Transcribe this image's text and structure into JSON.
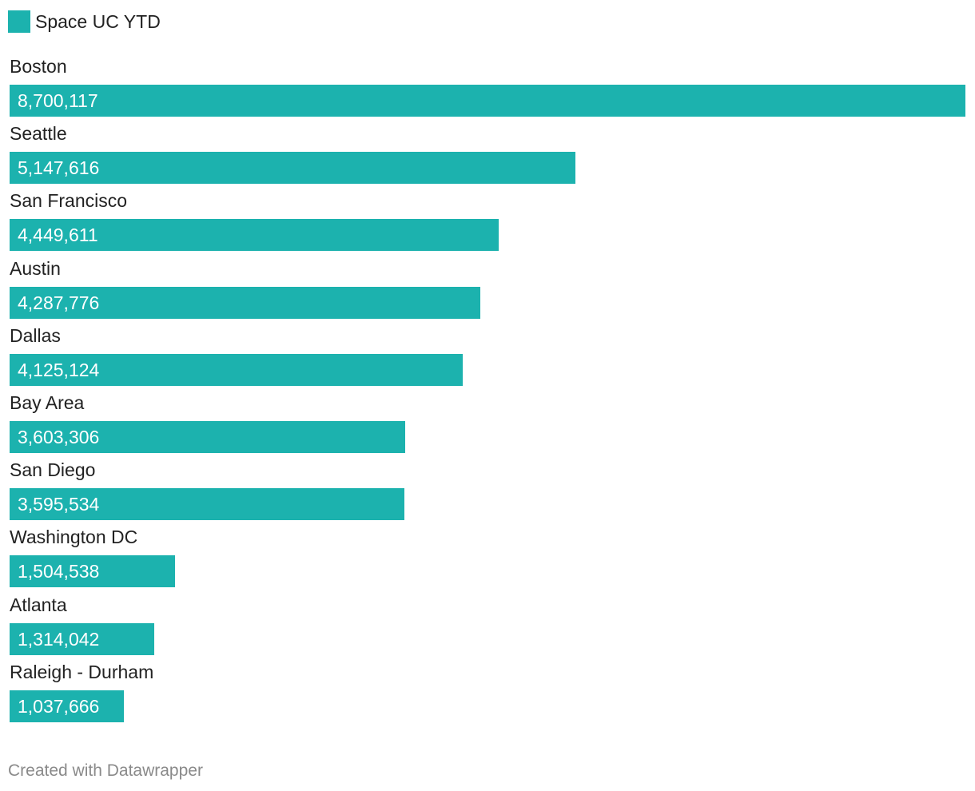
{
  "legend": {
    "label": "Space UC YTD"
  },
  "colors": {
    "bar": "#1cb2ae",
    "text": "#222222",
    "bar_label": "#ffffff",
    "footer": "#8a8a8a"
  },
  "chart_data": {
    "type": "bar",
    "orientation": "horizontal",
    "series": [
      {
        "name": "Space UC YTD",
        "values": [
          8700117,
          5147616,
          4449611,
          4287776,
          4125124,
          3603306,
          3595534,
          1504538,
          1314042,
          1037666
        ]
      }
    ],
    "categories": [
      "Boston",
      "Seattle",
      "San Francisco",
      "Austin",
      "Dallas",
      "Bay Area",
      "San Diego",
      "Washington DC",
      "Atlanta",
      "Raleigh - Durham"
    ],
    "value_labels": [
      "8,700,117",
      "5,147,616",
      "4,449,611",
      "4,287,776",
      "4,125,124",
      "3,603,306",
      "3,595,534",
      "1,504,538",
      "1,314,042",
      "1,037,666"
    ],
    "xlim": [
      0,
      8700117
    ],
    "grid": false,
    "legend_position": "top-left"
  },
  "footer": {
    "text": "Created with Datawrapper"
  }
}
